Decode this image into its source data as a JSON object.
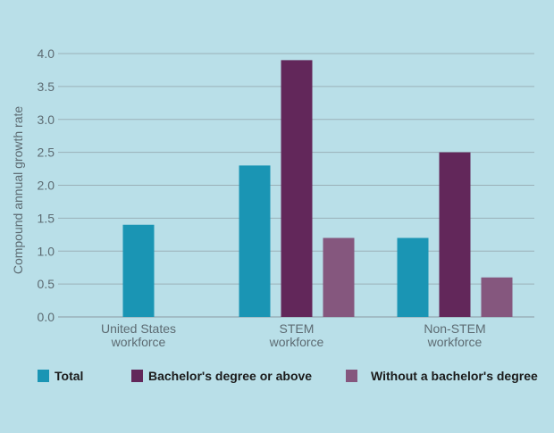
{
  "chart_data": {
    "type": "bar",
    "title": "",
    "xlabel": "",
    "ylabel": "Compound annual growth rate",
    "ylim": [
      0,
      4.0
    ],
    "yticks": [
      "0.0",
      "0.5",
      "1.0",
      "1.5",
      "2.0",
      "2.5",
      "3.0",
      "3.5",
      "4.0"
    ],
    "grid": true,
    "legend_position": "bottom",
    "categories": [
      [
        "United States",
        "workforce"
      ],
      [
        "STEM",
        "workforce"
      ],
      [
        "Non-STEM",
        "workforce"
      ]
    ],
    "series": [
      {
        "name": "Total",
        "color": "#1a95b4",
        "values": [
          1.4,
          2.3,
          1.2
        ]
      },
      {
        "name": "Bachelor's degree or above",
        "color": "#62275a",
        "values": [
          null,
          3.9,
          2.5
        ]
      },
      {
        "name": "Without a bachelor's degree",
        "color": "#85577e",
        "values": [
          null,
          1.2,
          0.6
        ]
      }
    ]
  }
}
